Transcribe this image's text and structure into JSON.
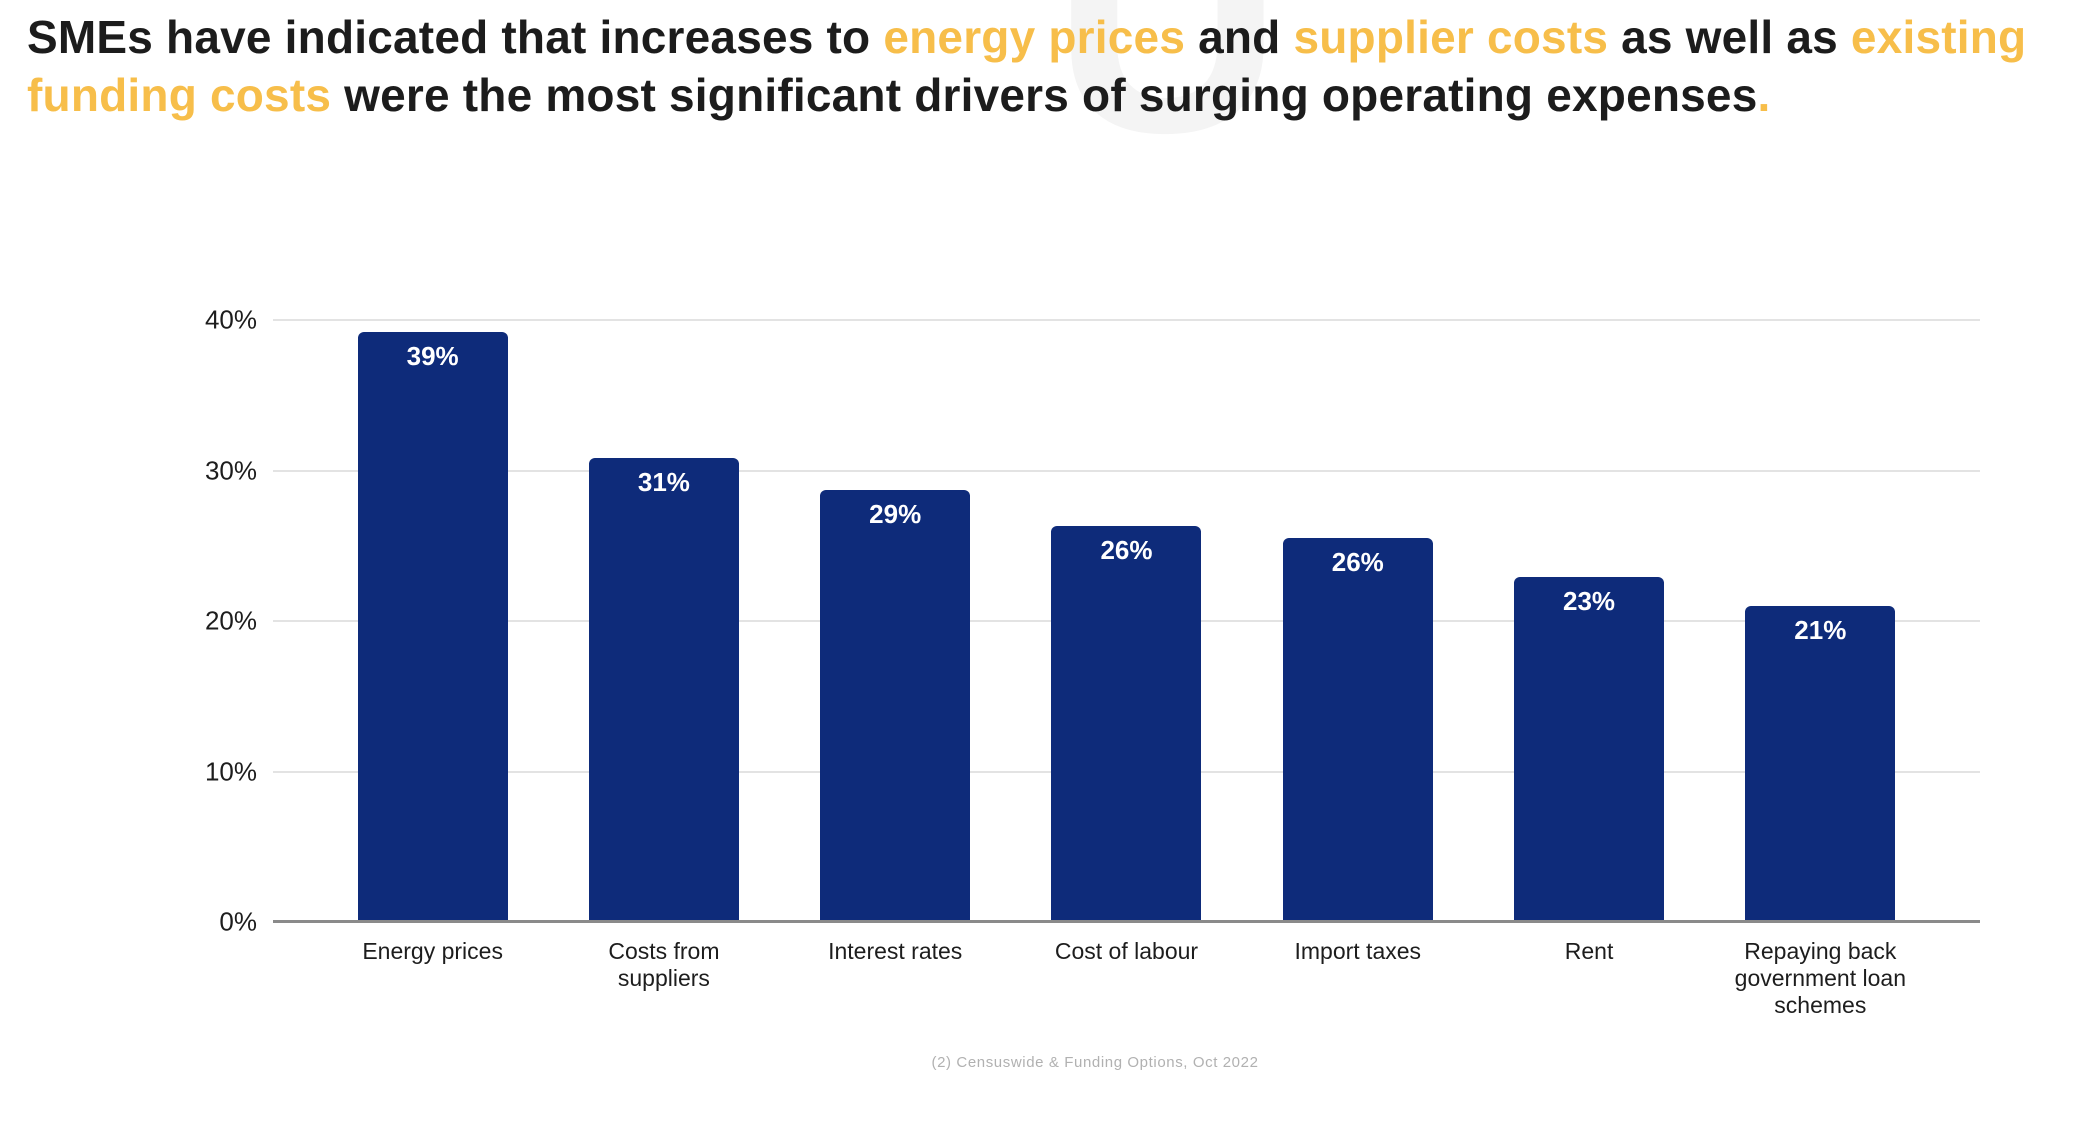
{
  "page": {
    "background_color": "#ffffff"
  },
  "watermark": {
    "glyph": "U",
    "color": "#f4f4f4"
  },
  "title": {
    "dark_color": "#1c1c1c",
    "accent_color": "#f7be4a",
    "segments": [
      {
        "text": "SMEs have indicated that increases to ",
        "style": "dark"
      },
      {
        "text": "energy prices",
        "style": "accent"
      },
      {
        "text": " and ",
        "style": "dark"
      },
      {
        "text": "supplier costs",
        "style": "accent"
      },
      {
        "text": " as well as ",
        "style": "dark"
      },
      {
        "text": "existing",
        "style": "accent",
        "br_after": true
      },
      {
        "text": "funding costs",
        "style": "accent"
      },
      {
        "text": " were the most significant drivers of surging operating expenses",
        "style": "dark"
      },
      {
        "text": ".",
        "style": "accent"
      }
    ]
  },
  "chart_data": {
    "type": "bar",
    "title": "",
    "xlabel": "",
    "ylabel": "",
    "categories": [
      "Energy prices",
      "Costs from suppliers",
      "Interest rates",
      "Cost of labour",
      "Import taxes",
      "Rent",
      "Repaying back government loan schemes"
    ],
    "values": [
      39.2,
      30.8,
      28.7,
      26.3,
      25.5,
      22.9,
      21.0
    ],
    "bar_labels": [
      "39%",
      "31%",
      "29%",
      "26%",
      "26%",
      "23%",
      "21%"
    ],
    "ylim": [
      0,
      40
    ],
    "yticks": [
      {
        "value": 0,
        "label": "0%"
      },
      {
        "value": 10,
        "label": "10%"
      },
      {
        "value": 20,
        "label": "20%"
      },
      {
        "value": 30,
        "label": "30%"
      },
      {
        "value": 40,
        "label": "40%"
      }
    ],
    "grid": true,
    "legend_position": "none",
    "bar_color": "#0e2b7a",
    "bar_label_color": "#ffffff",
    "gridline_color": "#e3e3e3",
    "axis_line_color": "#8a8a8a"
  },
  "footer": {
    "source": "(2) Censuswide & Funding Options, Oct 2022"
  }
}
